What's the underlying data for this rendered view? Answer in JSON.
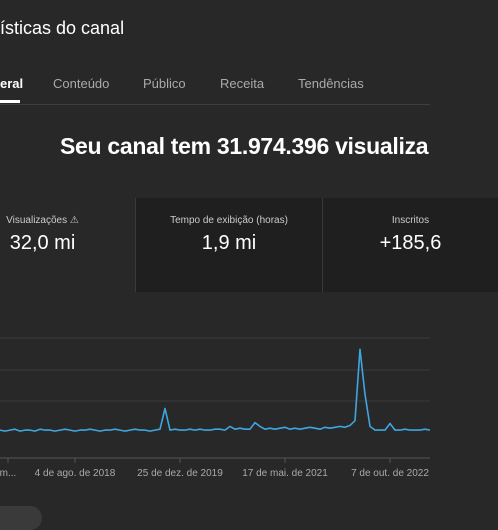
{
  "header": {
    "title": "ísticas do canal"
  },
  "tabs": [
    "eral",
    "Conteúdo",
    "Público",
    "Receita",
    "Tendências"
  ],
  "headline": "Seu canal tem 31.974.396 visualiza",
  "cards": [
    {
      "label": "Visualizações ⚠",
      "value": "32,0 mi"
    },
    {
      "label": "Tempo de exibição (horas)",
      "value": "1,9 mi"
    },
    {
      "label": "Inscritos",
      "value": "+185,6"
    }
  ],
  "chart_data": {
    "type": "line",
    "color": "#3ea6e0",
    "ylim": [
      0,
      100
    ],
    "values": [
      2,
      1,
      2,
      3,
      1,
      2,
      2,
      1,
      3,
      2,
      2,
      1,
      2,
      3,
      2,
      1,
      2,
      2,
      3,
      2,
      1,
      2,
      2,
      3,
      2,
      1,
      2,
      3,
      2,
      2,
      1,
      2,
      3,
      25,
      2,
      3,
      2,
      2,
      3,
      2,
      3,
      2,
      2,
      3,
      3,
      2,
      6,
      3,
      4,
      3,
      3,
      10,
      6,
      3,
      4,
      3,
      4,
      5,
      3,
      4,
      3,
      4,
      5,
      4,
      3,
      5,
      4,
      5,
      6,
      5,
      7,
      12,
      88,
      40,
      6,
      2,
      2,
      2,
      9,
      2,
      2,
      3,
      2,
      2,
      2,
      3,
      2
    ],
    "x_labels": [
      "m...",
      "4 de ago. de 2018",
      "25 de dez. de 2019",
      "17 de mai. de 2021",
      "7 de out. de 2022"
    ]
  }
}
